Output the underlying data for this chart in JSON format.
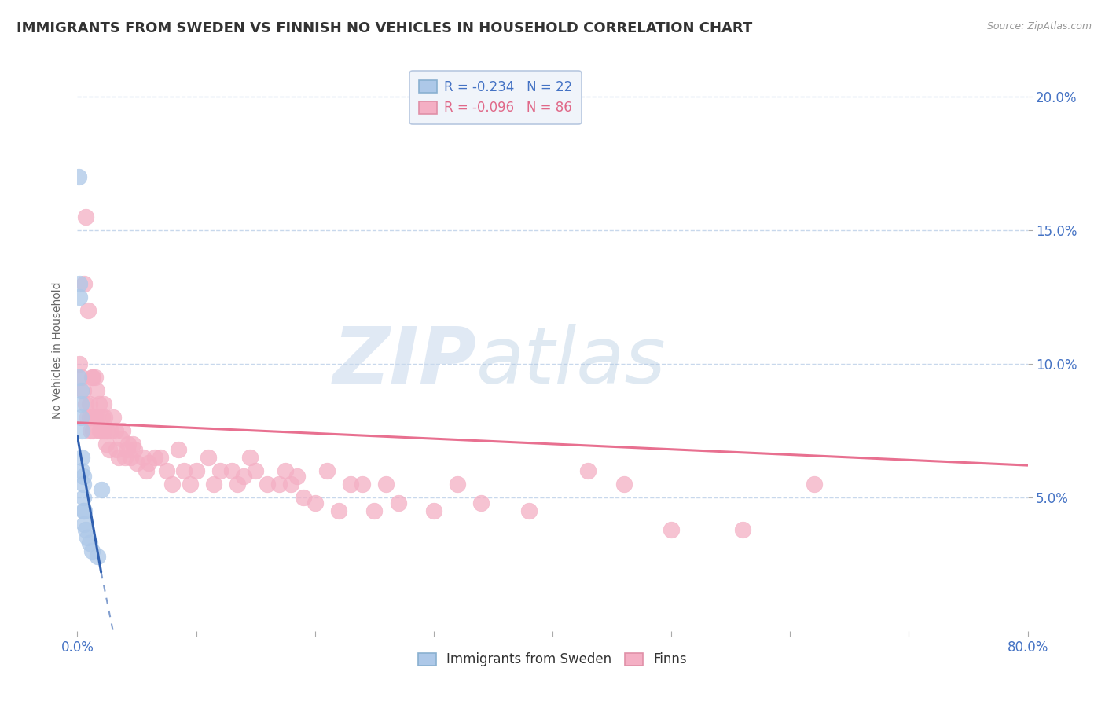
{
  "title": "IMMIGRANTS FROM SWEDEN VS FINNISH NO VEHICLES IN HOUSEHOLD CORRELATION CHART",
  "source": "Source: ZipAtlas.com",
  "ylabel": "No Vehicles in Household",
  "legend_blue_r": "-0.234",
  "legend_blue_n": "22",
  "legend_pink_r": "-0.096",
  "legend_pink_n": "86",
  "legend_blue_label": "Immigrants from Sweden",
  "legend_pink_label": "Finns",
  "blue_color": "#adc8e8",
  "pink_color": "#f4afc4",
  "blue_line_color": "#3060b0",
  "pink_line_color": "#e87090",
  "xmin": 0.0,
  "xmax": 0.8,
  "ymin": 0.0,
  "ymax": 0.21,
  "yticks": [
    0.05,
    0.1,
    0.15,
    0.2
  ],
  "ytick_labels": [
    "5.0%",
    "10.0%",
    "15.0%",
    "20.0%"
  ],
  "xtick_positions": [
    0.0,
    0.1,
    0.2,
    0.3,
    0.4,
    0.5,
    0.6,
    0.7,
    0.8
  ],
  "blue_scatter_x": [
    0.001,
    0.001,
    0.002,
    0.002,
    0.003,
    0.003,
    0.003,
    0.004,
    0.004,
    0.004,
    0.005,
    0.005,
    0.005,
    0.005,
    0.006,
    0.006,
    0.007,
    0.008,
    0.01,
    0.012,
    0.017,
    0.02
  ],
  "blue_scatter_y": [
    0.17,
    0.095,
    0.13,
    0.125,
    0.09,
    0.085,
    0.08,
    0.075,
    0.065,
    0.06,
    0.058,
    0.055,
    0.05,
    0.045,
    0.045,
    0.04,
    0.038,
    0.035,
    0.033,
    0.03,
    0.028,
    0.053
  ],
  "pink_scatter_x": [
    0.002,
    0.004,
    0.005,
    0.006,
    0.007,
    0.007,
    0.008,
    0.009,
    0.01,
    0.01,
    0.011,
    0.012,
    0.012,
    0.013,
    0.013,
    0.014,
    0.015,
    0.015,
    0.016,
    0.017,
    0.018,
    0.019,
    0.02,
    0.021,
    0.022,
    0.022,
    0.023,
    0.024,
    0.025,
    0.027,
    0.028,
    0.03,
    0.032,
    0.033,
    0.035,
    0.037,
    0.038,
    0.04,
    0.042,
    0.043,
    0.045,
    0.047,
    0.048,
    0.05,
    0.055,
    0.058,
    0.06,
    0.065,
    0.07,
    0.075,
    0.08,
    0.085,
    0.09,
    0.095,
    0.1,
    0.11,
    0.115,
    0.12,
    0.13,
    0.135,
    0.14,
    0.145,
    0.15,
    0.16,
    0.17,
    0.175,
    0.18,
    0.185,
    0.19,
    0.2,
    0.21,
    0.22,
    0.23,
    0.24,
    0.25,
    0.26,
    0.27,
    0.3,
    0.32,
    0.34,
    0.38,
    0.43,
    0.46,
    0.5,
    0.56,
    0.62
  ],
  "pink_scatter_y": [
    0.1,
    0.095,
    0.09,
    0.13,
    0.155,
    0.085,
    0.08,
    0.12,
    0.085,
    0.08,
    0.075,
    0.095,
    0.08,
    0.095,
    0.075,
    0.08,
    0.095,
    0.08,
    0.09,
    0.08,
    0.085,
    0.075,
    0.075,
    0.08,
    0.085,
    0.075,
    0.08,
    0.07,
    0.075,
    0.068,
    0.075,
    0.08,
    0.075,
    0.068,
    0.065,
    0.072,
    0.075,
    0.065,
    0.068,
    0.07,
    0.065,
    0.07,
    0.068,
    0.063,
    0.065,
    0.06,
    0.063,
    0.065,
    0.065,
    0.06,
    0.055,
    0.068,
    0.06,
    0.055,
    0.06,
    0.065,
    0.055,
    0.06,
    0.06,
    0.055,
    0.058,
    0.065,
    0.06,
    0.055,
    0.055,
    0.06,
    0.055,
    0.058,
    0.05,
    0.048,
    0.06,
    0.045,
    0.055,
    0.055,
    0.045,
    0.055,
    0.048,
    0.045,
    0.055,
    0.048,
    0.045,
    0.06,
    0.055,
    0.038,
    0.038,
    0.055
  ],
  "blue_line_x0": 0.0,
  "blue_line_x1": 0.02,
  "blue_line_y0": 0.073,
  "blue_line_y1": 0.022,
  "blue_line_dash_x0": 0.02,
  "blue_line_dash_x1": 0.03,
  "blue_line_dash_y0": 0.022,
  "blue_line_dash_y1": 0.0,
  "pink_line_x0": 0.0,
  "pink_line_x1": 0.8,
  "pink_line_y0": 0.078,
  "pink_line_y1": 0.062,
  "background_color": "#ffffff",
  "grid_color": "#c8d8ec",
  "title_fontsize": 13,
  "axis_fontsize": 10,
  "tick_color": "#4472c4"
}
